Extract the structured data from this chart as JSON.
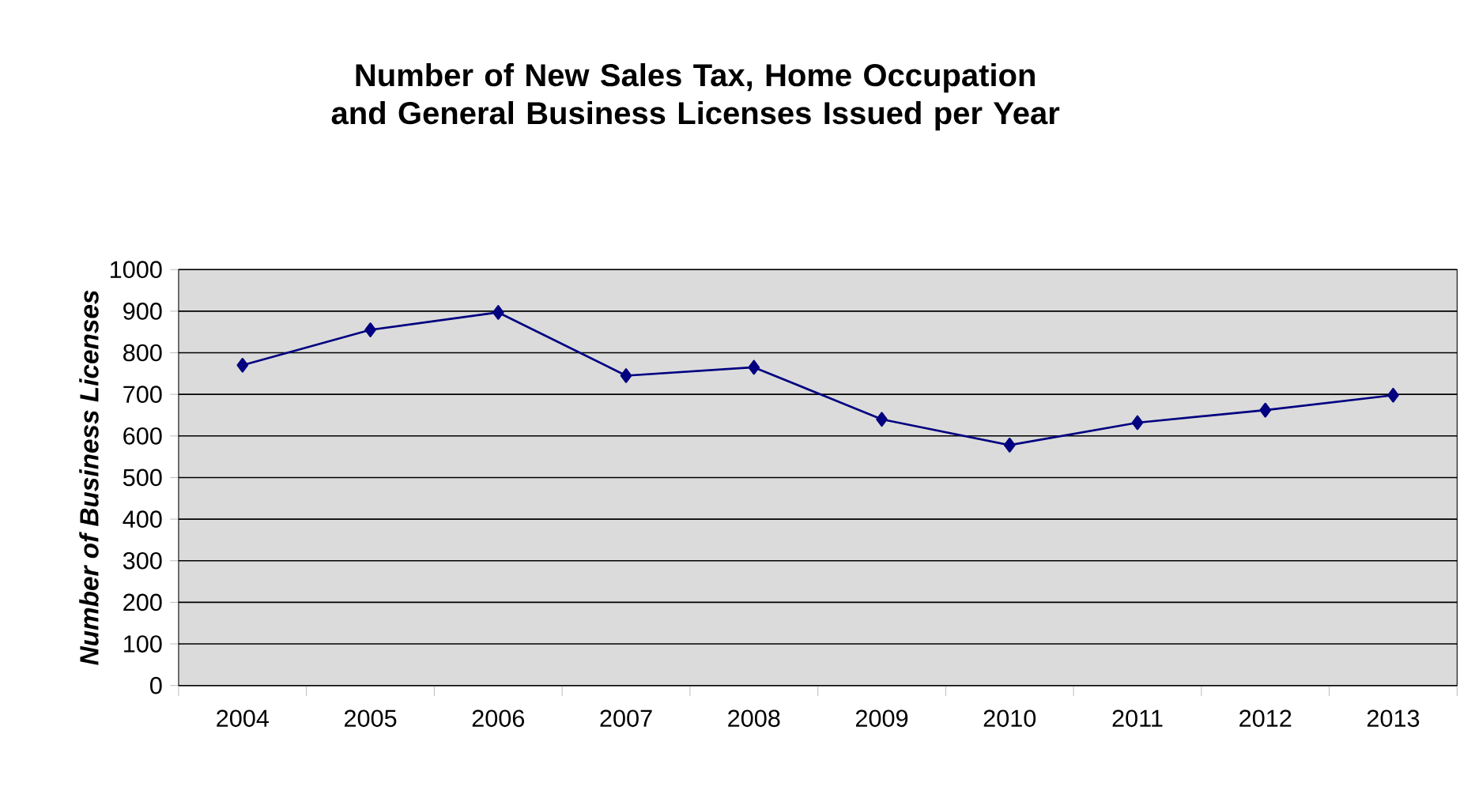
{
  "chart_data": {
    "type": "line",
    "title": "Number of New Sales Tax, Home Occupation and General Business Licenses Issued per Year",
    "ylabel": "Number of Business Licenses",
    "categories": [
      "2004",
      "2005",
      "2006",
      "2007",
      "2008",
      "2009",
      "2010",
      "2011",
      "2012",
      "2013"
    ],
    "series": [
      {
        "color": "#000080",
        "values": [
          770,
          855,
          897,
          745,
          765,
          640,
          578,
          632,
          662,
          698
        ]
      }
    ],
    "ylim": [
      0,
      1000
    ],
    "yticks": [
      0,
      100,
      200,
      300,
      400,
      500,
      600,
      700,
      800,
      900,
      1000
    ],
    "grid": "y",
    "marker": "diamond",
    "line_style": "solid"
  }
}
